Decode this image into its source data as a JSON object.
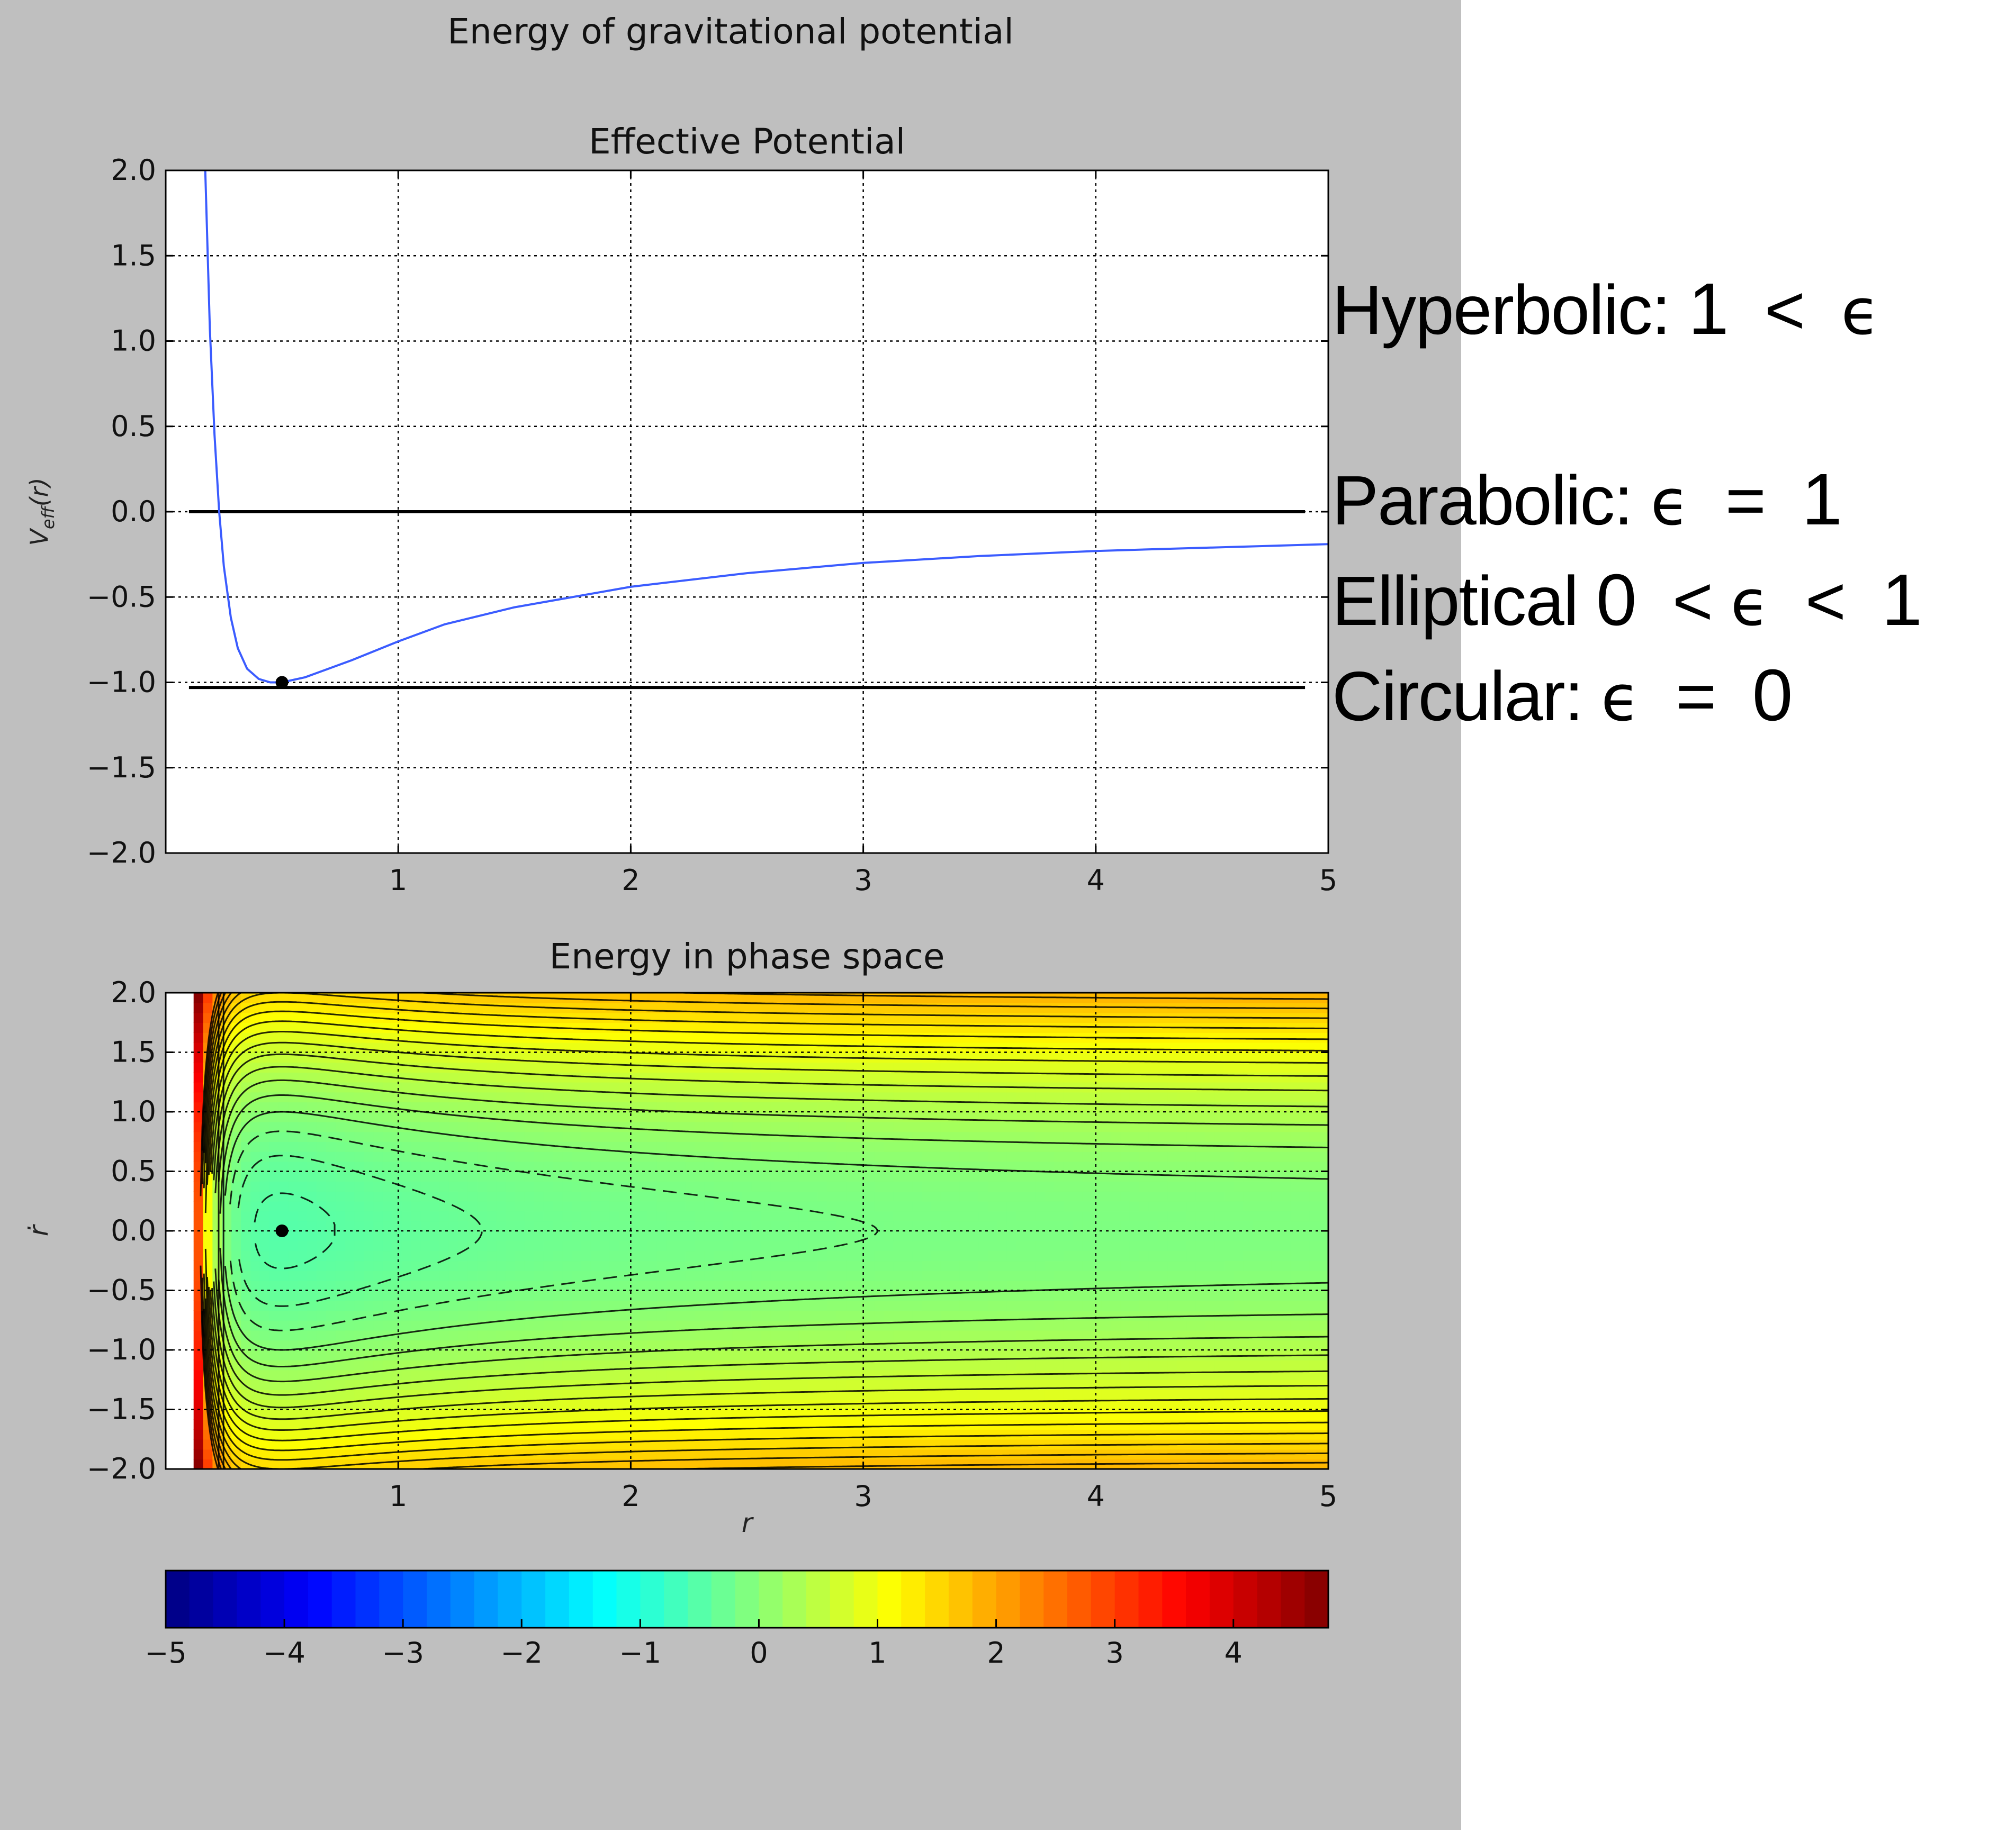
{
  "figure": {
    "suptitle": "Energy of gravitational potential",
    "background": "#bfbfbf"
  },
  "chart_data": [
    {
      "type": "line",
      "title": "Effective Potential",
      "xlabel": "",
      "ylabel": "V_eff(r)",
      "xlim": [
        0.0,
        5.0
      ],
      "ylim": [
        -2.0,
        2.0
      ],
      "xticks": [
        1,
        2,
        3,
        4,
        5
      ],
      "xtick_labels": [
        "1",
        "2",
        "3",
        "4",
        "5"
      ],
      "yticks": [
        2.0,
        1.5,
        1.0,
        0.5,
        0.0,
        -0.5,
        -1.0,
        -1.5,
        -2.0
      ],
      "ytick_labels": [
        "2.0",
        "1.5",
        "1.0",
        "0.5",
        "0.0",
        "−0.5",
        "−1.0",
        "−1.5",
        "−2.0"
      ],
      "grid": true,
      "series": [
        {
          "color": "#3b5cff",
          "x": [
            0.17,
            0.19,
            0.21,
            0.23,
            0.25,
            0.28,
            0.31,
            0.35,
            0.4,
            0.45,
            0.5,
            0.6,
            0.7,
            0.8,
            1.0,
            1.2,
            1.5,
            2.0,
            2.5,
            3.0,
            3.5,
            4.0,
            4.5,
            5.0
          ],
          "y": [
            2.0,
            1.07,
            0.45,
            0.0,
            -0.32,
            -0.62,
            -0.8,
            -0.92,
            -0.98,
            -1.0,
            -1.0,
            -0.97,
            -0.92,
            -0.87,
            -0.76,
            -0.66,
            -0.56,
            -0.44,
            -0.36,
            -0.3,
            -0.26,
            -0.23,
            -0.21,
            -0.19
          ]
        }
      ],
      "hlines": [
        {
          "y": 0.0,
          "xmin": 0.1,
          "xmax": 4.9,
          "color": "#000000"
        },
        {
          "y": -1.03,
          "xmin": 0.1,
          "xmax": 4.9,
          "color": "#000000"
        }
      ],
      "marker": {
        "x": 0.5,
        "y": -1.0,
        "color": "#000000"
      }
    },
    {
      "type": "heatmap",
      "title": "Energy in phase space",
      "xlabel": "r",
      "ylabel": "ṙ",
      "xlim": [
        0.0,
        5.0
      ],
      "ylim": [
        -2.0,
        2.0
      ],
      "xticks": [
        1,
        2,
        3,
        4,
        5
      ],
      "xtick_labels": [
        "1",
        "2",
        "3",
        "4",
        "5"
      ],
      "yticks": [
        2.0,
        1.5,
        1.0,
        0.5,
        0.0,
        -0.5,
        -1.0,
        -1.5,
        -2.0
      ],
      "ytick_labels": [
        "2.0",
        "1.5",
        "1.0",
        "0.5",
        "0.0",
        "−0.5",
        "−1.0",
        "−1.5",
        "−2.0"
      ],
      "grid": true,
      "function": "E = rdot^2/2 + 1/(8 r^2) - 1/(2 r)",
      "colormap": "jet",
      "contour_levels": [
        -0.9,
        -0.75,
        -0.6,
        -0.45,
        -0.3,
        -0.15,
        0.0,
        0.15,
        0.3,
        0.45,
        0.6,
        0.75,
        0.9,
        1.05,
        1.2,
        1.35,
        1.5,
        1.65,
        1.8,
        1.95,
        2.1,
        2.25
      ],
      "marker": {
        "x": 0.5,
        "y": 0.0,
        "color": "#000000"
      }
    },
    {
      "type": "colorbar",
      "range": [
        -5,
        4.8
      ],
      "steps": 49,
      "ticks": [
        -5,
        -4,
        -3,
        -2,
        -1,
        0,
        1,
        2,
        3,
        4
      ],
      "tick_labels": [
        "−5",
        "−4",
        "−3",
        "−2",
        "−1",
        "0",
        "1",
        "2",
        "3",
        "4"
      ]
    }
  ],
  "annotations": [
    {
      "label": "Hyperbolic:",
      "condition": [
        {
          "t": "num",
          "v": "1"
        },
        {
          "t": "txt",
          "v": "  <  "
        },
        {
          "t": "sym",
          "v": "ϵ"
        }
      ]
    },
    {
      "label": "Parabolic:",
      "condition": [
        {
          "t": "sym",
          "v": "ϵ"
        },
        {
          "t": "txt",
          "v": "  =  "
        },
        {
          "t": "num",
          "v": "1"
        }
      ]
    },
    {
      "label": "Elliptical",
      "condition": [
        {
          "t": "num",
          "v": "0"
        },
        {
          "t": "txt",
          "v": "  < "
        },
        {
          "t": "sym",
          "v": "ϵ"
        },
        {
          "t": "txt",
          "v": "  <  "
        },
        {
          "t": "num",
          "v": "1"
        }
      ]
    },
    {
      "label": "Circular:",
      "condition": [
        {
          "t": "sym",
          "v": "ϵ"
        },
        {
          "t": "txt",
          "v": "  =  "
        },
        {
          "t": "num",
          "v": "0"
        }
      ]
    }
  ]
}
